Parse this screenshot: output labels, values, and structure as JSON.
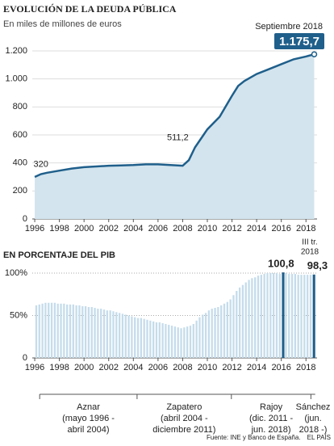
{
  "chart_data": [
    {
      "type": "area",
      "title": "EVOLUCIÓN DE LA DEUDA PÚBLICA",
      "subtitle": "En miles de millones de euros",
      "x": [
        1996,
        1996.5,
        1997,
        1998,
        1999,
        2000,
        2001,
        2002,
        2003,
        2004,
        2005,
        2006,
        2007,
        2008,
        2008.5,
        2009,
        2010,
        2011,
        2012,
        2012.5,
        2013,
        2014,
        2015,
        2016,
        2017,
        2018,
        2018.67
      ],
      "series": [
        {
          "name": "Deuda",
          "color": "#1f5f8b",
          "fill": "#d3e4ee",
          "values": [
            300,
            320,
            330,
            345,
            360,
            370,
            375,
            380,
            382,
            385,
            390,
            390,
            385,
            380,
            420,
            511.2,
            640,
            730,
            880,
            950,
            985,
            1035,
            1070,
            1105,
            1140,
            1160,
            1175.7
          ]
        }
      ],
      "xlim": [
        1995.8,
        2018.9
      ],
      "xticks": [
        1996,
        1998,
        2000,
        2002,
        2004,
        2006,
        2008,
        2010,
        2012,
        2014,
        2016,
        2018
      ],
      "ylim": [
        0,
        1200
      ],
      "yticks": [
        0,
        200,
        400,
        600,
        800,
        {
          "value": 1000,
          "label": "1.000"
        },
        {
          "value": 1200,
          "label": "1.200"
        }
      ],
      "grid": true,
      "annotations": [
        {
          "text": "320",
          "x": 1996.5,
          "value": 320
        },
        {
          "text": "511,2",
          "x": 2009,
          "value": 511.2
        }
      ],
      "end_label": {
        "title": "Septiembre 2018",
        "text": "1.175,7",
        "x": 2018.67,
        "value": 1175.7
      }
    },
    {
      "type": "bar",
      "title": "EN PORCENTAJE DEL PIB",
      "x": [
        1996,
        1996.25,
        1996.5,
        1996.75,
        1997,
        1997.25,
        1997.5,
        1997.75,
        1998,
        1998.25,
        1998.5,
        1998.75,
        1999,
        1999.25,
        1999.5,
        1999.75,
        2000,
        2000.25,
        2000.5,
        2000.75,
        2001,
        2001.25,
        2001.5,
        2001.75,
        2002,
        2002.25,
        2002.5,
        2002.75,
        2003,
        2003.25,
        2003.5,
        2003.75,
        2004,
        2004.25,
        2004.5,
        2004.75,
        2005,
        2005.25,
        2005.5,
        2005.75,
        2006,
        2006.25,
        2006.5,
        2006.75,
        2007,
        2007.25,
        2007.5,
        2007.75,
        2008,
        2008.25,
        2008.5,
        2008.75,
        2009,
        2009.25,
        2009.5,
        2009.75,
        2010,
        2010.25,
        2010.5,
        2010.75,
        2011,
        2011.25,
        2011.5,
        2011.75,
        2012,
        2012.25,
        2012.5,
        2012.75,
        2013,
        2013.25,
        2013.5,
        2013.75,
        2014,
        2014.25,
        2014.5,
        2014.75,
        2015,
        2015.25,
        2015.5,
        2015.75,
        2016,
        2016.25,
        2016.5,
        2016.75,
        2017,
        2017.25,
        2017.5,
        2017.75,
        2018,
        2018.25,
        2018.5
      ],
      "values": [
        62,
        63,
        64,
        65,
        65,
        65,
        65,
        64,
        64,
        64,
        63,
        63,
        63,
        62,
        62,
        61,
        61,
        60,
        60,
        59,
        58,
        58,
        57,
        56,
        56,
        55,
        54,
        53,
        52,
        51,
        50,
        49,
        48,
        47,
        47,
        46,
        45,
        44,
        43,
        42,
        42,
        41,
        40,
        39,
        38,
        37,
        36,
        35,
        36,
        37,
        38,
        40,
        44,
        48,
        51,
        53,
        56,
        58,
        59,
        60,
        62,
        64,
        66,
        69,
        74,
        79,
        83,
        86,
        89,
        92,
        94,
        95,
        97,
        98,
        99,
        100,
        100,
        100,
        100,
        99,
        100.8,
        100,
        99,
        99,
        99,
        98,
        98,
        98,
        98,
        98,
        98.3
      ],
      "value_labels": [
        null,
        null,
        null,
        null,
        null,
        null,
        null,
        null,
        null,
        null,
        null,
        null,
        null,
        null,
        null,
        null,
        null,
        null,
        null,
        null,
        null,
        null,
        null,
        null,
        null,
        null,
        null,
        null,
        null,
        null,
        null,
        null,
        null,
        null,
        null,
        null,
        null,
        null,
        null,
        null,
        null,
        null,
        null,
        null,
        null,
        null,
        null,
        null,
        null,
        null,
        null,
        null,
        null,
        null,
        null,
        null,
        null,
        null,
        null,
        null,
        null,
        null,
        null,
        null,
        null,
        null,
        null,
        null,
        null,
        null,
        null,
        null,
        null,
        null,
        null,
        null,
        null,
        null,
        null,
        null,
        "100,8",
        null,
        null,
        null,
        null,
        null,
        null,
        null,
        null,
        null,
        "98,3"
      ],
      "color": "#c5dceb",
      "highlight_color": "#1f5f8b",
      "note_lines": [
        "III tr.",
        "2018"
      ],
      "xlim": [
        1995.8,
        2018.9
      ],
      "xticks": [
        1996,
        1998,
        2000,
        2002,
        2004,
        2006,
        2008,
        2010,
        2012,
        2014,
        2016,
        2018
      ],
      "ylim": [
        0,
        100
      ],
      "yticks": [
        0,
        {
          "value": 50,
          "label": "50%"
        },
        {
          "value": 100,
          "label": "100%"
        }
      ],
      "grid": true,
      "periods": [
        {
          "name": "Aznar",
          "detail": [
            "(mayo 1996 -",
            "abril 2004)"
          ],
          "start": 1996.4,
          "end": 2004.3
        },
        {
          "name": "Zapatero",
          "detail": [
            "(abril 2004 -",
            "diciembre 2011)"
          ],
          "start": 2004.3,
          "end": 2011.95
        },
        {
          "name": "Rajoy",
          "detail": [
            "(dic. 2011 -",
            "jun. 2018)"
          ],
          "start": 2011.95,
          "end": 2018.4
        },
        {
          "name": "Sánchez",
          "detail": [
            "(jun.",
            "2018 -)"
          ],
          "start": 2018.4,
          "end": 2018.75
        }
      ]
    }
  ],
  "source": "Fuente: INE y Banco de España.",
  "credit": "EL PAÍS"
}
